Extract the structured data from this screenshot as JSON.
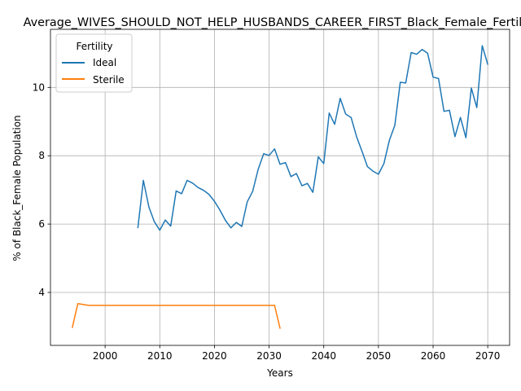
{
  "chart_data": {
    "type": "line",
    "title": "Average_WIVES_SHOULD_NOT_HELP_HUSBANDS_CAREER_FIRST_Black_Female_Fertility",
    "xlabel": "Years",
    "ylabel": "% of Black_Female Population",
    "xlim": [
      1990,
      2074
    ],
    "ylim": [
      2.45,
      11.7
    ],
    "xticks": [
      2000,
      2010,
      2020,
      2030,
      2040,
      2050,
      2060,
      2070
    ],
    "yticks": [
      4,
      6,
      8,
      10
    ],
    "grid": true,
    "legend": {
      "title": "Fertility",
      "placement": "top-left"
    },
    "series": [
      {
        "name": "Ideal",
        "color": "#1f77b4",
        "x": [
          2006,
          2007,
          2008,
          2009,
          2010,
          2011,
          2012,
          2013,
          2014,
          2015,
          2016,
          2017,
          2018,
          2019,
          2020,
          2021,
          2022,
          2023,
          2024,
          2025,
          2026,
          2027,
          2028,
          2029,
          2030,
          2031,
          2032,
          2033,
          2034,
          2035,
          2036,
          2037,
          2038,
          2039,
          2040,
          2041,
          2042,
          2043,
          2044,
          2045,
          2046,
          2047,
          2048,
          2049,
          2050,
          2051,
          2052,
          2053,
          2054,
          2055,
          2056,
          2057,
          2058,
          2059,
          2060,
          2061,
          2062,
          2063,
          2064,
          2065,
          2066,
          2067,
          2068,
          2069,
          2070
        ],
        "values": [
          5.9,
          7.28,
          6.5,
          6.07,
          5.82,
          6.12,
          5.94,
          6.97,
          6.89,
          7.28,
          7.2,
          7.07,
          6.99,
          6.87,
          6.67,
          6.41,
          6.11,
          5.89,
          6.05,
          5.93,
          6.65,
          6.96,
          7.6,
          8.06,
          8.01,
          8.2,
          7.75,
          7.8,
          7.39,
          7.48,
          7.12,
          7.19,
          6.93,
          7.97,
          7.77,
          9.25,
          8.92,
          9.68,
          9.22,
          9.12,
          8.56,
          8.13,
          7.68,
          7.55,
          7.46,
          7.77,
          8.45,
          8.89,
          10.15,
          10.13,
          11.02,
          10.97,
          11.11,
          11.0,
          10.3,
          10.26,
          9.3,
          9.33,
          8.56,
          9.12,
          8.53,
          9.98,
          9.41,
          11.22,
          10.68
        ]
      },
      {
        "name": "Sterile",
        "color": "#ff7f0e",
        "x": [
          1994,
          1995,
          1997,
          2000,
          2005,
          2010,
          2015,
          2020,
          2025,
          2030,
          2031,
          2032
        ],
        "values": [
          2.98,
          3.67,
          3.62,
          3.62,
          3.62,
          3.62,
          3.62,
          3.62,
          3.62,
          3.62,
          3.62,
          2.95
        ]
      }
    ]
  }
}
